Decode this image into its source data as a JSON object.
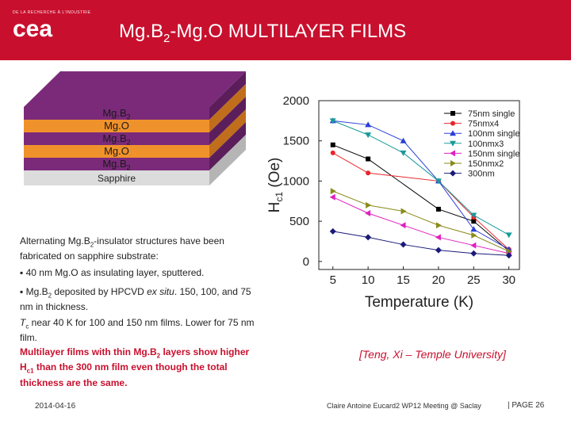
{
  "header": {
    "logo_tag": "DE LA RECHERCHE À L'INDUSTRIE",
    "logo_text": "cea",
    "title_pre": "Mg.B",
    "title_sub": "2",
    "title_post": "-Mg.O MULTILAYER FILMS"
  },
  "stack": {
    "layers": [
      {
        "label": "Mg.B",
        "sub": "2"
      },
      {
        "label": "Mg.O",
        "sub": ""
      },
      {
        "label": "Mg.B",
        "sub": "2"
      },
      {
        "label": "Mg.O",
        "sub": ""
      },
      {
        "label": "Mg.B",
        "sub": "2"
      }
    ],
    "substrate": "Sapphire",
    "colors": {
      "mgb2": "#7b2a7a",
      "mgo": "#f0922c",
      "sapphire": "#dcdcdc"
    }
  },
  "text": {
    "p1_a": "Alternating Mg.B",
    "p1_sub": "2",
    "p1_b": "-insulator structures have been fabricated on sapphire substrate:",
    "b1": "▪ 40 nm Mg.O as insulating layer, sputtered.",
    "b2_a": "▪ Mg.B",
    "b2_sub": "2",
    "b2_b": " deposited by HPCVD ",
    "b2_em": "ex situ",
    "b2_c": ". 150, 100, and 75 nm in thickness.",
    "p2_a": "T",
    "p2_sub": "c",
    "p2_b": " near 40 K for 100 and 150 nm films. Lower for 75 nm film.",
    "red_a": "Multilayer films with thin Mg.B",
    "red_sub1": "2",
    "red_b": " layers show higher H",
    "red_sub2": "c1",
    "red_c": " than the 300 nm film even though the total thickness are the same.",
    "cite": "[Teng, Xi – Temple University]"
  },
  "footer": {
    "date": "2014-04-16",
    "meeting": "Claire Antoine Eucard2 WP12 Meeting @ Saclay",
    "page": "| PAGE 26"
  },
  "chart_data": {
    "type": "line",
    "xlabel": "Temperature (K)",
    "ylabel": "H",
    "ylabel_sub": "c1",
    "ylabel_post": " (Oe)",
    "xticks": [
      "5",
      "10",
      "15",
      "20",
      "25",
      "30"
    ],
    "yticks": [
      "0",
      "500",
      "1000",
      "1500",
      "2000"
    ],
    "xlim": [
      3,
      31.5
    ],
    "ylim": [
      -100,
      2000
    ],
    "legend_position": "top-right",
    "series": [
      {
        "name": "75nm single",
        "color": "#000000",
        "marker": "square",
        "x": [
          5,
          10,
          20,
          25,
          30
        ],
        "y": [
          1450,
          1275,
          650,
          500,
          130
        ]
      },
      {
        "name": "75nmx4",
        "color": "#e8252a",
        "marker": "circle",
        "x": [
          5,
          10,
          20,
          25,
          30
        ],
        "y": [
          1350,
          1100,
          1000,
          550,
          150
        ]
      },
      {
        "name": "100nm single",
        "color": "#2a3ed8",
        "marker": "triangle-up",
        "x": [
          5,
          10,
          15,
          20,
          25,
          30
        ],
        "y": [
          1750,
          1700,
          1500,
          1000,
          400,
          150
        ]
      },
      {
        "name": "100nmx3",
        "color": "#1a9a9a",
        "marker": "triangle-down",
        "x": [
          5,
          10,
          15,
          20,
          25,
          30
        ],
        "y": [
          1750,
          1575,
          1350,
          1000,
          575,
          330
        ]
      },
      {
        "name": "150nm single",
        "color": "#e020c0",
        "marker": "triangle-left",
        "x": [
          5,
          10,
          15,
          20,
          25,
          30
        ],
        "y": [
          800,
          600,
          450,
          300,
          200,
          100
        ]
      },
      {
        "name": "150nmx2",
        "color": "#8a8a1a",
        "marker": "triangle-right",
        "x": [
          5,
          10,
          15,
          20,
          25,
          30
        ],
        "y": [
          875,
          700,
          625,
          450,
          325,
          125
        ]
      },
      {
        "name": "300nm",
        "color": "#1a1a7a",
        "marker": "diamond",
        "x": [
          5,
          10,
          15,
          20,
          25,
          30
        ],
        "y": [
          375,
          300,
          210,
          140,
          100,
          75
        ]
      }
    ]
  }
}
